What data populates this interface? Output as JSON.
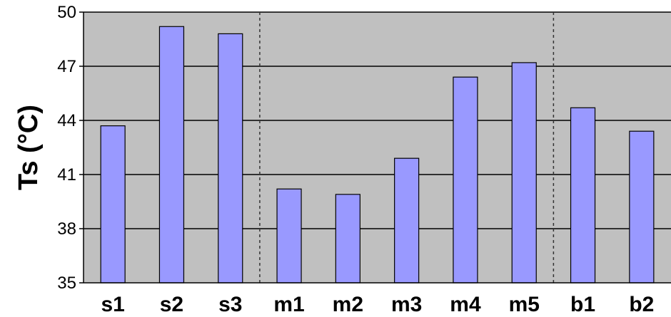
{
  "chart_data": {
    "type": "bar",
    "categories": [
      "s1",
      "s2",
      "s3",
      "m1",
      "m2",
      "m3",
      "m4",
      "m5",
      "b1",
      "b2"
    ],
    "values": [
      43.7,
      49.2,
      48.8,
      40.2,
      39.9,
      41.9,
      46.4,
      47.2,
      44.7,
      43.4
    ],
    "ylabel": "Ts (°C)",
    "ylim": [
      35,
      50
    ],
    "yticks": [
      "35",
      "38",
      "41",
      "44",
      "47",
      "50"
    ],
    "grid": true,
    "group_separators_after": [
      "s3",
      "m5"
    ],
    "colors": {
      "bar": "#9999ff",
      "plot_background": "#c0c0c0",
      "gridline": "#000000"
    }
  }
}
